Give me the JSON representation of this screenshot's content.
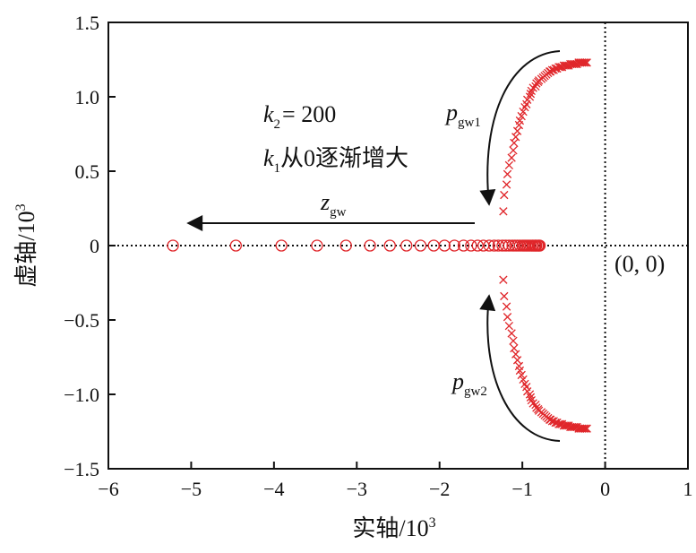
{
  "chart_data": {
    "type": "scatter",
    "xlabel": "实轴/10",
    "xlabel_sup": "3",
    "ylabel": "虚轴/10",
    "ylabel_sup": "3",
    "xlim": [
      -6,
      1
    ],
    "ylim": [
      -1.5,
      1.5
    ],
    "x_ticks": [
      -6,
      -5,
      -4,
      -3,
      -2,
      -1,
      0,
      1
    ],
    "x_tick_labels": [
      "−6",
      "−5",
      "−4",
      "−3",
      "−2",
      "−1",
      "0",
      "1"
    ],
    "y_ticks": [
      1.5,
      1.0,
      0.5,
      0,
      -0.5,
      -1.0,
      -1.5
    ],
    "y_tick_labels": [
      "1.5",
      "1.0",
      "0.5",
      "0",
      "−0.5",
      "−1.0",
      "−1.5"
    ],
    "grid": false,
    "reference_lines": [
      {
        "orientation": "horizontal",
        "value": 0,
        "style": "dotted"
      },
      {
        "orientation": "vertical",
        "value": 0,
        "style": "dotted"
      }
    ],
    "series": [
      {
        "name": "zgw",
        "marker": "circle-open",
        "color": "#e0262a",
        "x": [
          -5.22,
          -4.46,
          -3.91,
          -3.48,
          -3.13,
          -2.84,
          -2.6,
          -2.4,
          -2.23,
          -2.07,
          -1.94,
          -1.82,
          -1.71,
          -1.62,
          -1.54,
          -1.47,
          -1.4,
          -1.34,
          -1.29,
          -1.24,
          -1.2,
          -1.16,
          -1.12,
          -1.09,
          -1.06,
          -1.03,
          -1.0,
          -0.98,
          -0.96,
          -0.94,
          -0.92,
          -0.9,
          -0.88,
          -0.87,
          -0.85,
          -0.84,
          -0.83,
          -0.81,
          -0.8,
          -0.79
        ],
        "y": [
          0,
          0,
          0,
          0,
          0,
          0,
          0,
          0,
          0,
          0,
          0,
          0,
          0,
          0,
          0,
          0,
          0,
          0,
          0,
          0,
          0,
          0,
          0,
          0,
          0,
          0,
          0,
          0,
          0,
          0,
          0,
          0,
          0,
          0,
          0,
          0,
          0,
          0,
          0,
          0
        ]
      },
      {
        "name": "pgw1",
        "marker": "x",
        "color": "#e0262a",
        "x": [
          -1.23,
          -1.22,
          -1.19,
          -1.18,
          -1.16,
          -1.13,
          -1.11,
          -1.1,
          -1.08,
          -1.06,
          -1.04,
          -1.03,
          -1.01,
          -0.99,
          -0.97,
          -0.95,
          -0.94,
          -0.91,
          -0.9,
          -0.89,
          -0.87,
          -0.84,
          -0.83,
          -0.81,
          -0.8,
          -0.77,
          -0.75,
          -0.73,
          -0.71,
          -0.69,
          -0.67,
          -0.66,
          -0.64,
          -0.62,
          -0.6,
          -0.58,
          -0.56,
          -0.54,
          -0.52,
          -0.5,
          -0.48,
          -0.46,
          -0.44,
          -0.42,
          -0.4,
          -0.38,
          -0.36,
          -0.34,
          -0.32,
          -0.3,
          -0.28,
          -0.26,
          -0.24,
          -0.22
        ],
        "y": [
          0.23,
          0.34,
          0.41,
          0.48,
          0.54,
          0.59,
          0.64,
          0.69,
          0.73,
          0.77,
          0.81,
          0.84,
          0.87,
          0.9,
          0.93,
          0.95,
          0.98,
          1.0,
          1.02,
          1.04,
          1.06,
          1.07,
          1.09,
          1.1,
          1.11,
          1.12,
          1.13,
          1.14,
          1.15,
          1.16,
          1.17,
          1.17,
          1.18,
          1.18,
          1.19,
          1.19,
          1.2,
          1.2,
          1.2,
          1.21,
          1.21,
          1.21,
          1.21,
          1.22,
          1.22,
          1.22,
          1.22,
          1.22,
          1.23,
          1.23,
          1.23,
          1.23,
          1.23,
          1.23
        ]
      },
      {
        "name": "pgw2",
        "marker": "x",
        "color": "#e0262a",
        "x": [
          -1.23,
          -1.22,
          -1.19,
          -1.18,
          -1.16,
          -1.13,
          -1.11,
          -1.1,
          -1.08,
          -1.06,
          -1.04,
          -1.03,
          -1.01,
          -0.99,
          -0.97,
          -0.95,
          -0.94,
          -0.91,
          -0.9,
          -0.89,
          -0.87,
          -0.84,
          -0.83,
          -0.81,
          -0.8,
          -0.77,
          -0.75,
          -0.73,
          -0.71,
          -0.69,
          -0.67,
          -0.66,
          -0.64,
          -0.62,
          -0.6,
          -0.58,
          -0.56,
          -0.54,
          -0.52,
          -0.5,
          -0.48,
          -0.46,
          -0.44,
          -0.42,
          -0.4,
          -0.38,
          -0.36,
          -0.34,
          -0.32,
          -0.3,
          -0.28,
          -0.26,
          -0.24,
          -0.22
        ],
        "y": [
          -0.23,
          -0.34,
          -0.41,
          -0.48,
          -0.54,
          -0.59,
          -0.64,
          -0.69,
          -0.73,
          -0.77,
          -0.81,
          -0.84,
          -0.87,
          -0.9,
          -0.93,
          -0.95,
          -0.98,
          -1.0,
          -1.02,
          -1.04,
          -1.06,
          -1.07,
          -1.09,
          -1.1,
          -1.11,
          -1.12,
          -1.13,
          -1.14,
          -1.15,
          -1.16,
          -1.17,
          -1.17,
          -1.18,
          -1.18,
          -1.19,
          -1.19,
          -1.2,
          -1.2,
          -1.2,
          -1.21,
          -1.21,
          -1.21,
          -1.21,
          -1.22,
          -1.22,
          -1.22,
          -1.22,
          -1.22,
          -1.23,
          -1.23,
          -1.23,
          -1.23,
          -1.23,
          -1.23
        ]
      }
    ],
    "annotations": {
      "k2_symbol": "k",
      "k2_sub": "2",
      "k2_value": "= 200",
      "k1_symbol": "k",
      "k1_sub": "1",
      "k1_text": "从0逐渐增大",
      "zgw_symbol": "z",
      "zgw_sub": "gw",
      "pgw1_symbol": "p",
      "pgw1_sub": "gw1",
      "pgw2_symbol": "p",
      "pgw2_sub": "gw2",
      "origin": "(0, 0)"
    }
  }
}
